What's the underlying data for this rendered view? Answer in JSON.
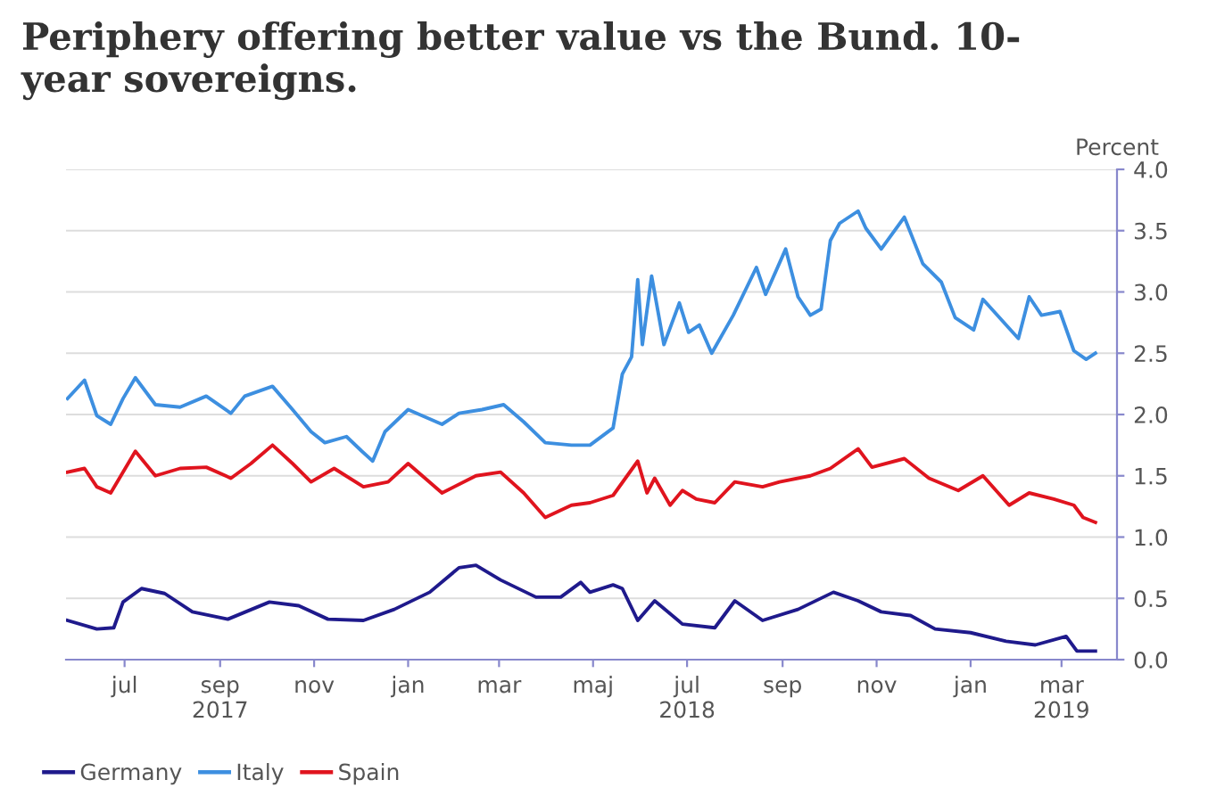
{
  "chart_data": {
    "type": "line",
    "title": "Periphery offering better value vs the Bund. 10-\nyear sovereigns.",
    "ylabel": "Percent",
    "xlim": [
      "2017-05-24",
      "2019-04-06"
    ],
    "xticks": [
      {
        "value": "2017-07-01",
        "label": "jul"
      },
      {
        "value": "2017-09-01",
        "label": "sep\n2017"
      },
      {
        "value": "2017-11-01",
        "label": "nov"
      },
      {
        "value": "2018-01-01",
        "label": "jan"
      },
      {
        "value": "2018-03-01",
        "label": "mar"
      },
      {
        "value": "2018-05-01",
        "label": "maj"
      },
      {
        "value": "2018-07-01",
        "label": "jul\n2018"
      },
      {
        "value": "2018-09-01",
        "label": "sep"
      },
      {
        "value": "2018-11-01",
        "label": "nov"
      },
      {
        "value": "2019-01-01",
        "label": "jan"
      },
      {
        "value": "2019-03-01",
        "label": "mar\n2019"
      }
    ],
    "ylim": [
      0,
      4
    ],
    "yticks": [
      {
        "value": 0,
        "label": "0.0"
      },
      {
        "value": 0.5,
        "label": "0.5"
      },
      {
        "value": 1,
        "label": "1.0"
      },
      {
        "value": 1.5,
        "label": "1.5"
      },
      {
        "value": 2,
        "label": "2.0"
      },
      {
        "value": 2.5,
        "label": "2.5"
      },
      {
        "value": 3,
        "label": "3.0"
      },
      {
        "value": 3.5,
        "label": "3.5"
      },
      {
        "value": 4,
        "label": "4.0"
      }
    ],
    "grid": "y",
    "legend": "bottom left",
    "line_style": "solid",
    "marker": "none",
    "series": [
      {
        "name": "Germany",
        "color": "#1f1a8c",
        "x": [
          "2017-05-25",
          "2017-06-13",
          "2017-06-24",
          "2017-06-30",
          "2017-07-12",
          "2017-07-27",
          "2017-08-14",
          "2017-09-06",
          "2017-10-03",
          "2017-10-22",
          "2017-11-10",
          "2017-12-03",
          "2017-12-23",
          "2018-01-15",
          "2018-02-03",
          "2018-02-14",
          "2018-03-02",
          "2018-03-25",
          "2018-04-10",
          "2018-04-23",
          "2018-04-29",
          "2018-05-14",
          "2018-05-20",
          "2018-05-30",
          "2018-06-10",
          "2018-06-28",
          "2018-07-19",
          "2018-08-01",
          "2018-08-19",
          "2018-09-11",
          "2018-10-04",
          "2018-10-20",
          "2018-11-04",
          "2018-11-23",
          "2018-12-09",
          "2019-01-01",
          "2019-01-24",
          "2019-02-12",
          "2019-03-04",
          "2019-03-11",
          "2019-03-23"
        ],
        "values": [
          0.32,
          0.25,
          0.26,
          0.47,
          0.58,
          0.54,
          0.39,
          0.33,
          0.47,
          0.44,
          0.33,
          0.32,
          0.41,
          0.55,
          0.75,
          0.77,
          0.65,
          0.51,
          0.51,
          0.63,
          0.55,
          0.61,
          0.58,
          0.32,
          0.48,
          0.29,
          0.26,
          0.48,
          0.32,
          0.41,
          0.55,
          0.48,
          0.39,
          0.36,
          0.25,
          0.22,
          0.15,
          0.12,
          0.19,
          0.07,
          0.07
        ]
      },
      {
        "name": "Italy",
        "color": "#3d8fe0",
        "x": [
          "2017-05-25",
          "2017-06-05",
          "2017-06-13",
          "2017-06-22",
          "2017-06-30",
          "2017-07-08",
          "2017-07-21",
          "2017-08-06",
          "2017-08-23",
          "2017-09-08",
          "2017-09-17",
          "2017-10-05",
          "2017-10-18",
          "2017-10-30",
          "2017-11-08",
          "2017-11-22",
          "2017-12-02",
          "2017-12-09",
          "2017-12-17",
          "2018-01-01",
          "2018-01-23",
          "2018-02-03",
          "2018-02-18",
          "2018-03-04",
          "2018-03-17",
          "2018-03-31",
          "2018-04-17",
          "2018-04-29",
          "2018-05-14",
          "2018-05-20",
          "2018-05-26",
          "2018-05-30",
          "2018-06-02",
          "2018-06-08",
          "2018-06-16",
          "2018-06-26",
          "2018-07-02",
          "2018-07-09",
          "2018-07-17",
          "2018-07-31",
          "2018-08-15",
          "2018-08-21",
          "2018-09-03",
          "2018-09-11",
          "2018-09-19",
          "2018-09-26",
          "2018-10-02",
          "2018-10-08",
          "2018-10-20",
          "2018-10-25",
          "2018-11-04",
          "2018-11-19",
          "2018-12-01",
          "2018-12-13",
          "2018-12-22",
          "2019-01-03",
          "2019-01-09",
          "2019-02-01",
          "2019-02-08",
          "2019-02-16",
          "2019-02-28",
          "2019-03-09",
          "2019-03-17",
          "2019-03-23"
        ],
        "values": [
          2.13,
          2.28,
          1.99,
          1.92,
          2.13,
          2.3,
          2.08,
          2.06,
          2.15,
          2.01,
          2.15,
          2.23,
          2.04,
          1.86,
          1.77,
          1.82,
          1.7,
          1.62,
          1.86,
          2.04,
          1.92,
          2.01,
          2.04,
          2.08,
          1.94,
          1.77,
          1.75,
          1.75,
          1.89,
          2.33,
          2.47,
          3.1,
          2.57,
          3.13,
          2.57,
          2.91,
          2.67,
          2.73,
          2.5,
          2.81,
          3.2,
          2.98,
          3.35,
          2.96,
          2.81,
          2.86,
          3.42,
          3.56,
          3.66,
          3.52,
          3.35,
          3.61,
          3.23,
          3.08,
          2.79,
          2.69,
          2.94,
          2.62,
          2.96,
          2.81,
          2.84,
          2.52,
          2.45,
          2.5
        ]
      },
      {
        "name": "Spain",
        "color": "#e0141e",
        "x": [
          "2017-05-25",
          "2017-06-05",
          "2017-06-13",
          "2017-06-22",
          "2017-07-08",
          "2017-07-21",
          "2017-08-06",
          "2017-08-23",
          "2017-09-08",
          "2017-09-21",
          "2017-10-05",
          "2017-10-18",
          "2017-10-30",
          "2017-11-14",
          "2017-12-03",
          "2017-12-19",
          "2018-01-01",
          "2018-01-23",
          "2018-02-14",
          "2018-03-02",
          "2018-03-17",
          "2018-03-31",
          "2018-04-17",
          "2018-04-29",
          "2018-05-14",
          "2018-05-22",
          "2018-05-30",
          "2018-06-05",
          "2018-06-10",
          "2018-06-20",
          "2018-06-28",
          "2018-07-07",
          "2018-07-19",
          "2018-08-01",
          "2018-08-19",
          "2018-08-30",
          "2018-09-19",
          "2018-10-02",
          "2018-10-20",
          "2018-10-29",
          "2018-11-19",
          "2018-12-05",
          "2018-12-24",
          "2019-01-09",
          "2019-01-26",
          "2019-02-08",
          "2019-02-24",
          "2019-03-09",
          "2019-03-15",
          "2019-03-23"
        ],
        "values": [
          1.53,
          1.56,
          1.41,
          1.36,
          1.7,
          1.5,
          1.56,
          1.57,
          1.48,
          1.6,
          1.75,
          1.6,
          1.45,
          1.56,
          1.41,
          1.45,
          1.6,
          1.36,
          1.5,
          1.53,
          1.36,
          1.16,
          1.26,
          1.28,
          1.34,
          1.48,
          1.62,
          1.36,
          1.48,
          1.26,
          1.38,
          1.31,
          1.28,
          1.45,
          1.41,
          1.45,
          1.5,
          1.56,
          1.72,
          1.57,
          1.64,
          1.48,
          1.38,
          1.5,
          1.26,
          1.36,
          1.31,
          1.26,
          1.16,
          1.12
        ]
      }
    ]
  }
}
